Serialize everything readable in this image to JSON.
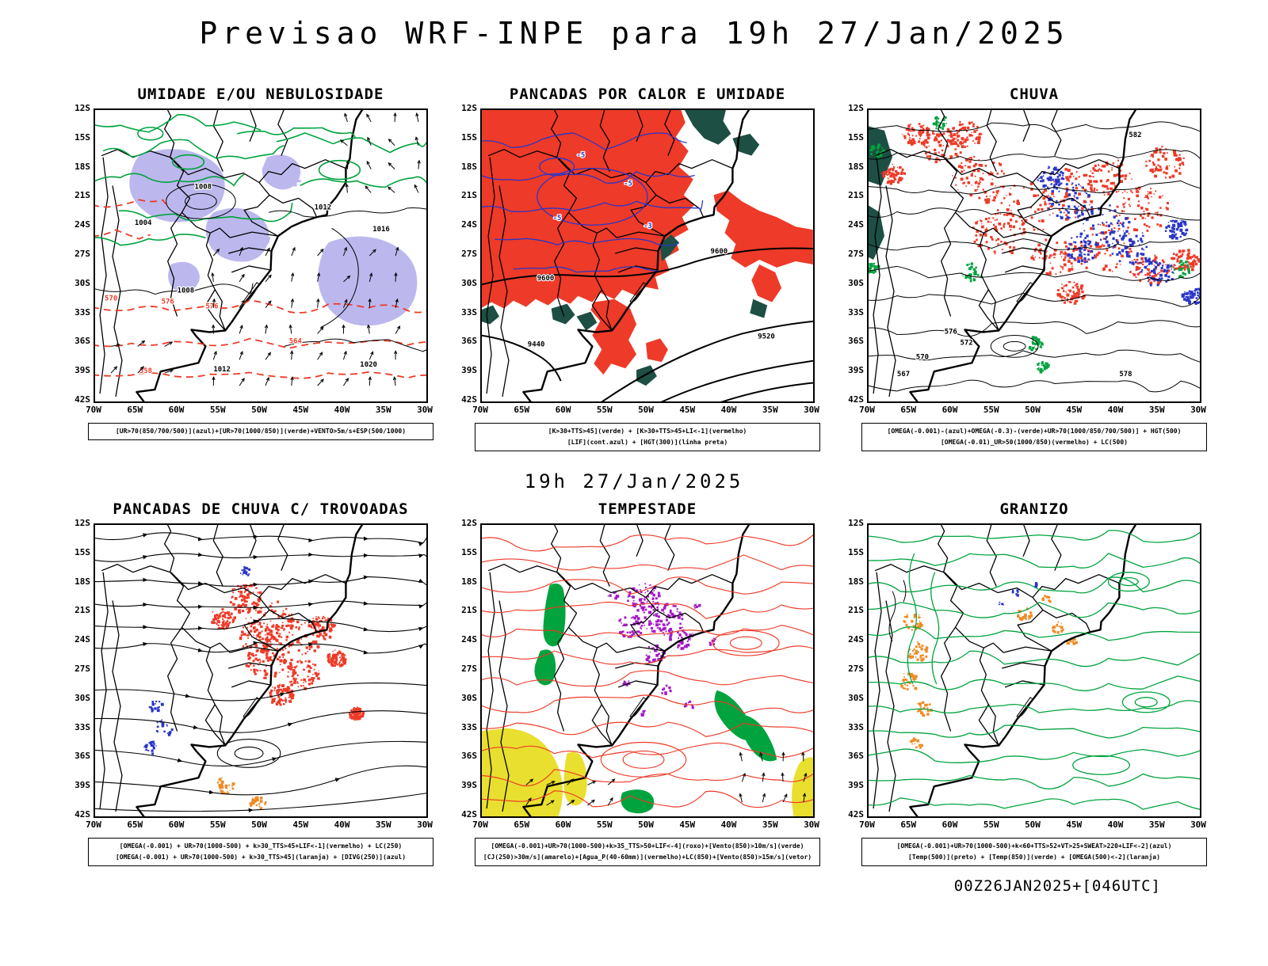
{
  "title": "Previsao WRF-INPE  para 19h 27/Jan/2025",
  "subtitle": "19h 27/Jan/2025",
  "footer": "00Z26JAN2025+[046UTC]",
  "axes": {
    "y_ticks": [
      "12S",
      "15S",
      "18S",
      "21S",
      "24S",
      "27S",
      "30S",
      "33S",
      "36S",
      "39S",
      "42S"
    ],
    "x_ticks": [
      "70W",
      "65W",
      "60W",
      "55W",
      "50W",
      "45W",
      "40W",
      "35W",
      "30W"
    ]
  },
  "colors": {
    "red": "#ee3a28",
    "green": "#00a33e",
    "blue": "#2a36c8",
    "lavender": "#bcb8ee",
    "dark_green": "#1d4f44",
    "orange": "#f08a24",
    "yellow": "#e9df2e",
    "purple": "#a518c8",
    "black": "#000000"
  },
  "panels": [
    {
      "id": "umidade",
      "title": "UMIDADE E/OU NEBULOSIDADE",
      "caption_lines": [
        "[UR>70(850/700/500)](azul)+[UR>70(1000/850)](verde)+VENTO>5m/s+ESP(500/1000)"
      ]
    },
    {
      "id": "pancadas_calor",
      "title": "PANCADAS POR CALOR E UMIDADE",
      "caption_lines": [
        "[K>30+TTS>45](verde) + [K>30+TTS>45+LI<-1](vermelho)",
        "[LIF](cont.azul) + [HGT(300)](linha preta)"
      ]
    },
    {
      "id": "chuva",
      "title": "CHUVA",
      "caption_lines": [
        "[OMEGA(-0.001)-(azul)+OMEGA(-0.3)-(verde)+UR>70(1000/850/700/500)] + HGT(500)",
        "[OMEGA(-0.01)_UR>50(1000/850)(vermelho) + LC(500)"
      ]
    },
    {
      "id": "trovoadas",
      "title": "PANCADAS DE CHUVA C/ TROVOADAS",
      "caption_lines": [
        "[OMEGA(-0.001) + UR>70(1000-500) + k>30_TTS>45+LIF<-1](vermelho) + LC(250)",
        "[OMEGA(-0.001) + UR>70(1000-500) + k>30_TTS>45](laranja) + [DIVG(250)](azul)"
      ]
    },
    {
      "id": "tempestade",
      "title": "TEMPESTADE",
      "caption_lines": [
        "[OMEGA(-0.001)+UR>70(1000-500)+k>35_TTS>50+LIF<-4](roxo)+[Vento(850)>10m/s](verde)",
        "[CJ(250)>30m/s](amarelo)+[Agua_P(40-60mm)](vermelho)+LC(850)+[Vento(850)>15m/s](vetor)"
      ]
    },
    {
      "id": "granizo",
      "title": "GRANIZO",
      "caption_lines": [
        "[OMEGA(-0.001)+UR>70(1000-500)+k<60+TTS>52+VT>25+SWEAT>220+LIF<-2](azul)",
        "[Temp(500)](preto) + [Temp(850)](verde) + [OMEGA(500)<-2](laranja)"
      ]
    }
  ],
  "map_labels": {
    "umidade": {
      "black": [
        "1008",
        "1004",
        "1012",
        "1016",
        "1020",
        "1008",
        "1012"
      ],
      "red": [
        "570",
        "576",
        "576",
        "564",
        "558"
      ]
    },
    "pancadas": {
      "hgt": [
        "9600",
        "9600",
        "9520",
        "9440"
      ],
      "lif": [
        "-5",
        "-5",
        "-5",
        "-3"
      ]
    },
    "chuva": {
      "hgt": [
        "582",
        "576",
        "572",
        "570",
        "567",
        "578"
      ]
    }
  }
}
